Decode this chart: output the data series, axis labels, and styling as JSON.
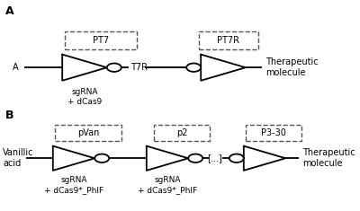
{
  "background_color": "#ffffff",
  "panel_A_label": "A",
  "panel_B_label": "B",
  "circuit_A": {
    "input_label": "A",
    "gate1_promoter": "PT7",
    "gate1_label": "sgRNA\n+ dCas9",
    "between_label": "T7R",
    "gate2_promoter": "PT7R",
    "output_label": "Therapeutic\nmolecule"
  },
  "circuit_B": {
    "input_label": "Vanillic\nacid",
    "gate1_promoter": "pVan",
    "gate1_label": "sgRNA\n+ dCas9*_PhlF",
    "gate2_promoter": "p2",
    "gate2_label": "sgRNA\n+ dCas9*_PhlF",
    "intermediate_label": "[...]",
    "gate3_promoter": "P3-30",
    "output_label": "Therapeutic\nmolecule"
  },
  "font_size": 7,
  "lw": 1.3
}
